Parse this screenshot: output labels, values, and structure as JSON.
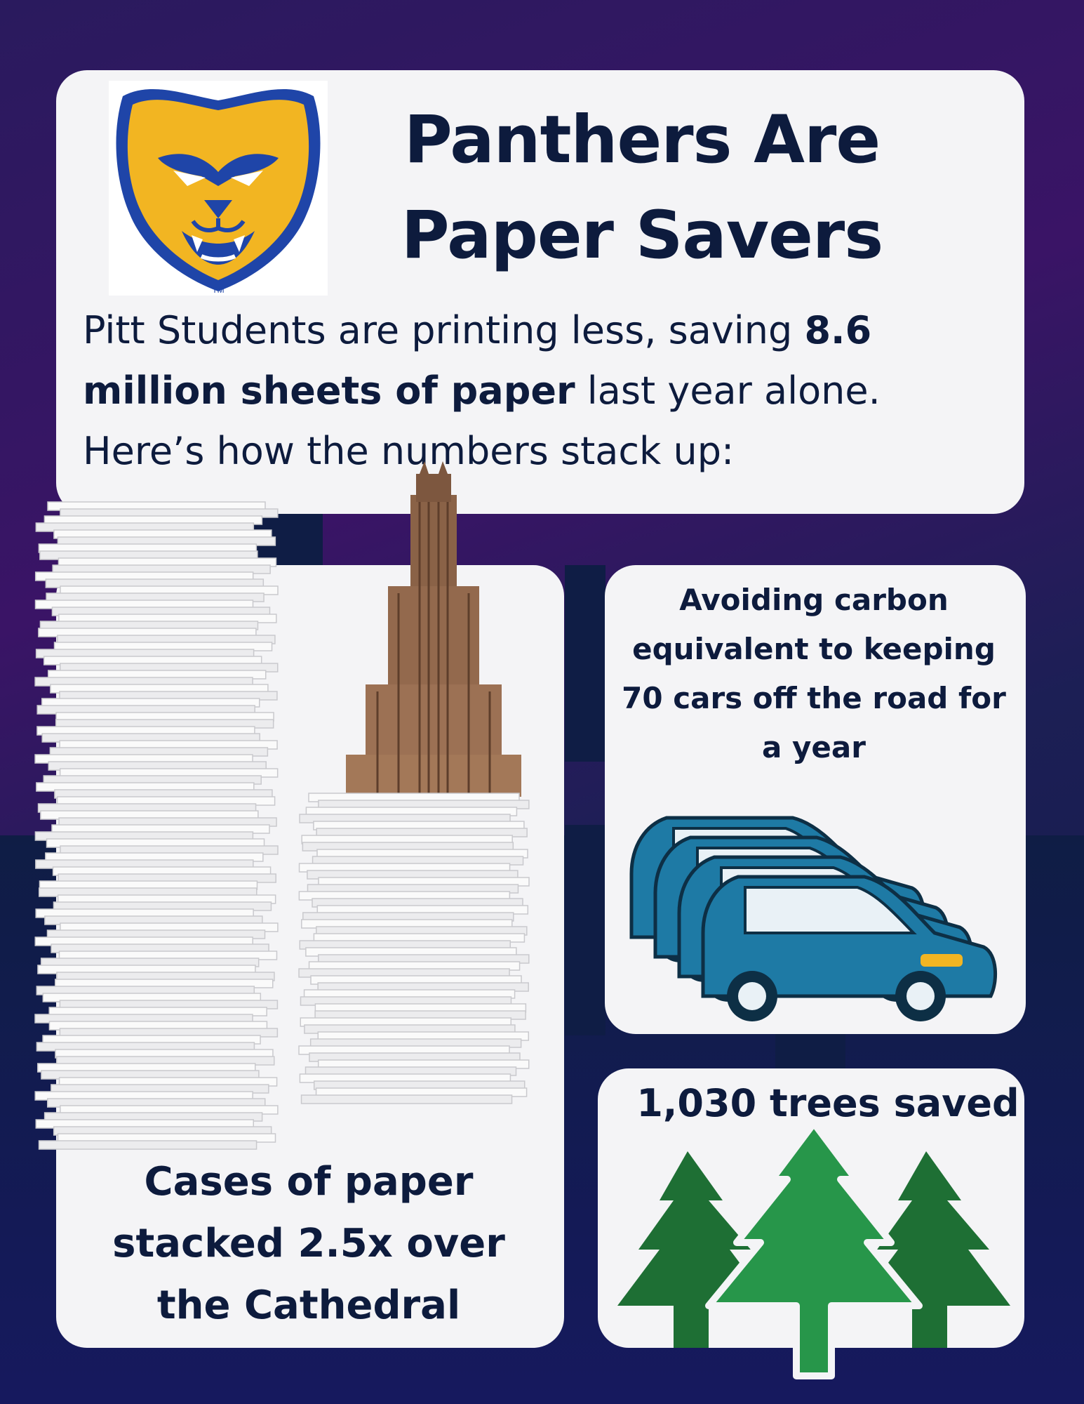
{
  "header": {
    "title_line1": "Panthers Are",
    "title_line2": "Paper Savers",
    "intro_part1": "Pitt Students are printing less, saving ",
    "intro_bold": "8.6 million sheets of paper",
    "intro_part2": " last year alone. Here’s how the numbers stack up:",
    "logo_mark": "TM"
  },
  "cards": {
    "cars_text": "Avoiding carbon equivalent to keeping 70 cars off the road for a year",
    "trees_text": "1,030 trees saved",
    "paper_text": "Cases of paper stacked 2.5x over the Cathedral"
  },
  "icons": {
    "logo": "panther-head-logo",
    "paper": "paper-stack-icon",
    "building": "cathedral-of-learning-icon",
    "cars": "suv-row-icon",
    "trees": "pine-trees-icon"
  },
  "colors": {
    "background": "#2a1a5e",
    "card": "#f4f4f6",
    "text": "#0d1b3d",
    "logo_gold": "#f2b522",
    "logo_blue": "#1f45a8",
    "car_blue": "#1e7aa5",
    "tree_green": "#1c8a3c"
  }
}
